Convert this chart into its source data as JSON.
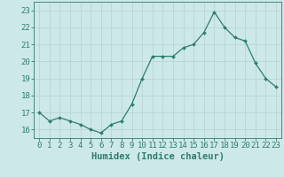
{
  "x": [
    0,
    1,
    2,
    3,
    4,
    5,
    6,
    7,
    8,
    9,
    10,
    11,
    12,
    13,
    14,
    15,
    16,
    17,
    18,
    19,
    20,
    21,
    22,
    23
  ],
  "y": [
    17.0,
    16.5,
    16.7,
    16.5,
    16.3,
    16.0,
    15.8,
    16.3,
    16.5,
    17.5,
    19.0,
    20.3,
    20.3,
    20.3,
    20.8,
    21.0,
    21.7,
    22.9,
    22.0,
    21.4,
    21.2,
    19.9,
    19.0,
    18.5
  ],
  "line_color": "#2e7d6e",
  "marker": "D",
  "marker_size": 2.0,
  "bg_color": "#cce8e8",
  "grid_color": "#b8d4d4",
  "xlabel": "Humidex (Indice chaleur)",
  "ylim": [
    15.5,
    23.5
  ],
  "xlim": [
    -0.5,
    23.5
  ],
  "yticks": [
    16,
    17,
    18,
    19,
    20,
    21,
    22,
    23
  ],
  "xticks": [
    0,
    1,
    2,
    3,
    4,
    5,
    6,
    7,
    8,
    9,
    10,
    11,
    12,
    13,
    14,
    15,
    16,
    17,
    18,
    19,
    20,
    21,
    22,
    23
  ],
  "tick_color": "#2e7d6e",
  "label_color": "#2e7d6e",
  "spine_color": "#2e7d6e",
  "font_size": 6.5,
  "xlabel_font_size": 7.5,
  "linewidth": 0.9
}
